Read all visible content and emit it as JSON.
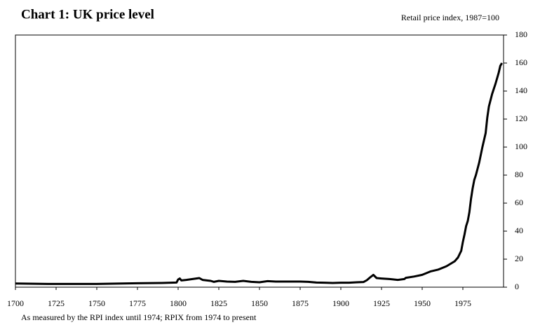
{
  "chart_data": {
    "type": "line",
    "title": "Chart 1: UK price level",
    "subtitle": "Retail price index, 1987=100",
    "footnote": "As measured by the RPI index until 1974;  RPIX from 1974 to present",
    "x": [
      1700,
      1720,
      1750,
      1775,
      1790,
      1799,
      1800,
      1801,
      1802,
      1805,
      1810,
      1813,
      1815,
      1820,
      1822,
      1825,
      1830,
      1835,
      1840,
      1845,
      1850,
      1855,
      1860,
      1865,
      1870,
      1875,
      1880,
      1885,
      1890,
      1895,
      1900,
      1905,
      1910,
      1914,
      1916,
      1918,
      1920,
      1922,
      1925,
      1930,
      1935,
      1939,
      1940,
      1945,
      1950,
      1955,
      1960,
      1965,
      1970,
      1972,
      1974,
      1975,
      1976,
      1977,
      1978,
      1979,
      1980,
      1981,
      1982,
      1983,
      1985,
      1987,
      1989,
      1990,
      1991,
      1993,
      1995,
      1997,
      1998,
      1999
    ],
    "series": [
      {
        "name": "RPI",
        "color": "#000000",
        "values": [
          2.6,
          2.3,
          2.3,
          2.8,
          3.0,
          3.3,
          5.5,
          6.2,
          4.8,
          5.2,
          6.0,
          6.5,
          5.2,
          4.5,
          3.8,
          4.5,
          4.0,
          3.8,
          4.5,
          3.8,
          3.5,
          4.3,
          4.0,
          4.0,
          4.0,
          4.0,
          3.8,
          3.3,
          3.2,
          3.0,
          3.2,
          3.2,
          3.5,
          3.7,
          5,
          7,
          8.8,
          6.5,
          6.2,
          5.8,
          5.2,
          5.8,
          6.7,
          7.6,
          8.8,
          11.2,
          12.6,
          15,
          18.5,
          21.2,
          26,
          32.3,
          37.6,
          43.6,
          47.2,
          53.5,
          63,
          70.5,
          76.5,
          80,
          88.8,
          100,
          110,
          121,
          129,
          138,
          145,
          153,
          158,
          160
        ]
      }
    ],
    "xlim": [
      1700,
      2000
    ],
    "xticks": [
      1700,
      1725,
      1750,
      1775,
      1800,
      1825,
      1850,
      1875,
      1900,
      1925,
      1950,
      1975
    ],
    "ylim": [
      0,
      180
    ],
    "yticks": [
      0,
      20,
      40,
      60,
      80,
      100,
      120,
      140,
      160,
      180
    ],
    "y_axis_side": "right"
  }
}
